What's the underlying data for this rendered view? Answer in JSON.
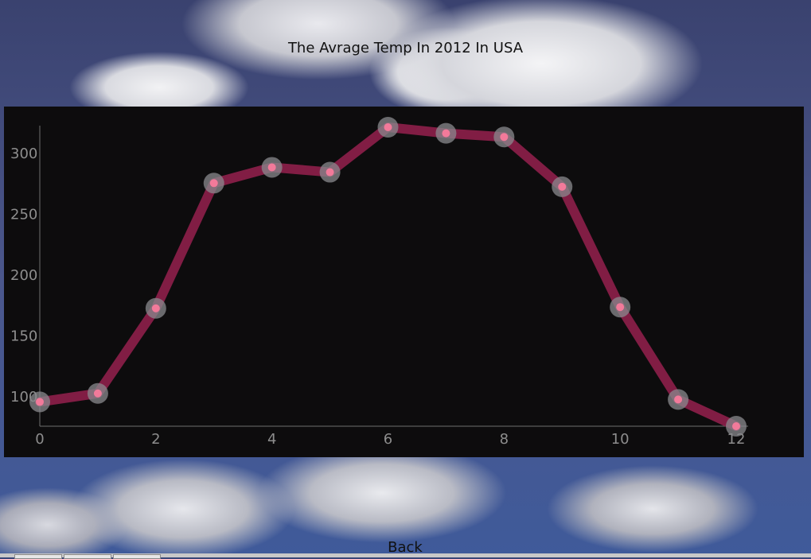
{
  "window": {
    "title": "The Avrage Temp In 2012 In USA",
    "back_label": "Back"
  },
  "colors": {
    "panel_bg": "#0d0c0d",
    "line": "#8e1f4a",
    "point_halo": "#8a8a8e",
    "point_core": "#f27a9a",
    "axis": "#707070",
    "tick_text": "#8d8d8d"
  },
  "chart_data": {
    "type": "line",
    "title": "The Avrage Temp In 2012 In USA",
    "xlabel": "",
    "ylabel": "",
    "x": [
      0,
      1,
      2,
      3,
      4,
      5,
      6,
      7,
      8,
      9,
      10,
      11,
      12
    ],
    "series": [
      {
        "values": [
          95,
          102,
          172,
          275,
          288,
          284,
          321,
          316,
          313,
          272,
          173,
          97,
          75
        ]
      }
    ],
    "xlim": [
      0,
      12
    ],
    "ylim": [
      75,
      321
    ],
    "xticks": [
      "0",
      "2",
      "4",
      "6",
      "8",
      "10",
      "12"
    ],
    "yticks": [
      "100",
      "150",
      "200",
      "250",
      "300"
    ],
    "grid": false,
    "legend": "none"
  }
}
